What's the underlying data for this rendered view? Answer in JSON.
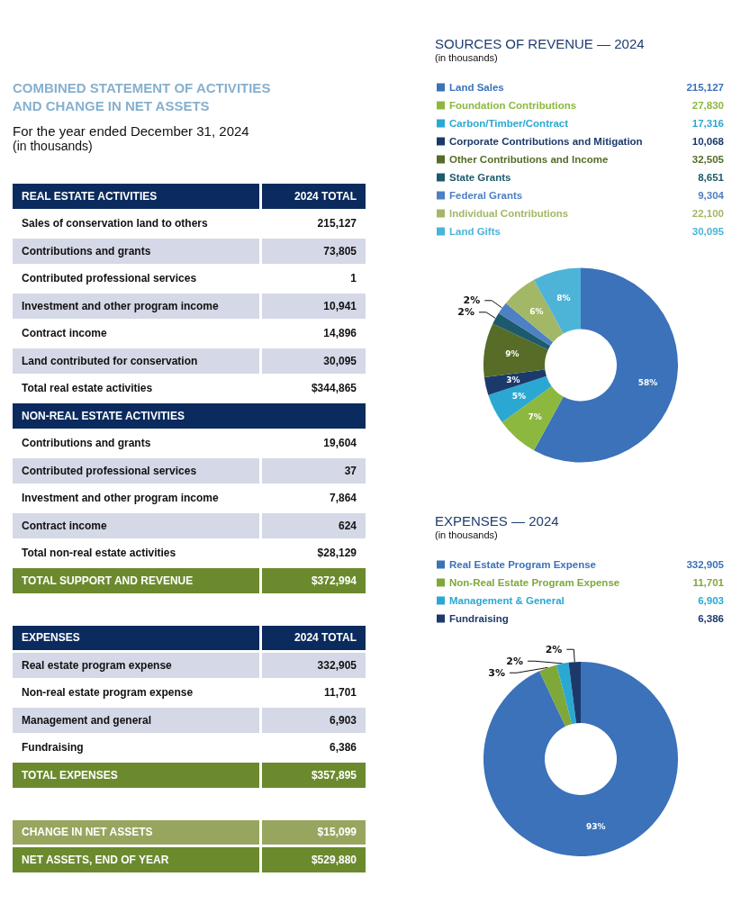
{
  "chart_data": [
    {
      "type": "other",
      "title": "COMBINED STATEMENT OF ACTIVITIES AND CHANGE IN NET ASSETS",
      "subtitle": "For the year ended December 31, 2024",
      "annotations": [
        "(in thousands)"
      ],
      "categories": [
        "REAL ESTATE ACTIVITIES",
        "Sales of conservation land to others",
        "Contributions and grants",
        "Contributed professional services",
        "Investment and other program income",
        "Contract income",
        "Land contributed for conservation",
        "Total real estate activities",
        "NON-REAL ESTATE ACTIVITIES",
        "Contributions and grants",
        "Contributed professional services",
        "Investment and other program income",
        "Contract income",
        "Total non-real estate activities",
        "TOTAL SUPPORT AND REVENUE",
        null,
        "EXPENSES",
        "Real estate program expense",
        "Non-real estate program expense",
        "Management and general",
        "Fundraising",
        "TOTAL EXPENSES",
        null,
        "CHANGE IN NET ASSETS",
        "NET ASSETS, END OF YEAR"
      ],
      "value_labels": [
        "2024 TOTAL",
        "215,127",
        "73,805",
        "1",
        "10,941",
        "14,896",
        "30,095",
        "$344,865",
        null,
        "19,604",
        "37",
        "7,864",
        "624",
        "$28,129",
        "$372,994",
        null,
        "2024 TOTAL",
        "332,905",
        "11,701",
        "6,903",
        "6,386",
        "$357,895",
        null,
        "$15,099",
        "$529,880"
      ],
      "colors": [
        "#0b2b5e",
        "#ffffff",
        "#d5d8e6",
        "#ffffff",
        "#d5d8e6",
        "#ffffff",
        "#d5d8e6",
        "#ffffff",
        "#0b2b5e",
        "#ffffff",
        "#d5d8e6",
        "#ffffff",
        "#d5d8e6",
        "#ffffff",
        "#6b8a2e",
        null,
        "#0b2b5e",
        "#d5d8e6",
        "#ffffff",
        "#d5d8e6",
        "#ffffff",
        "#6b8a2e",
        null,
        "#97a65f",
        "#6b8a2e"
      ]
    },
    {
      "type": "donut",
      "title": "SOURCES OF REVENUE — 2024",
      "subtitle": "(in thousands)",
      "categories": [
        "Land Sales",
        "Foundation Contributions",
        "Carbon/Timber/Contract",
        "Corporate Contributions and Mitigation",
        "Other Contributions and Income",
        "State Grants",
        "Federal Grants",
        "Individual Contributions",
        "Land Gifts"
      ],
      "values": [
        58,
        7,
        5,
        3,
        9,
        2,
        2,
        6,
        8
      ],
      "value_labels": [
        "58%",
        "7%",
        "5%",
        "3%",
        "9%",
        "2%",
        "2%",
        "6%",
        "8%"
      ],
      "annotations": [
        "215,127",
        "27,830",
        "17,316",
        "10,068",
        "32,505",
        "8,651",
        "9,304",
        "22,100",
        "30,095"
      ],
      "colors": [
        "#3b72b9",
        "#8cb83f",
        "#2ba8d2",
        "#1b3a6b",
        "#566c27",
        "#1d5a6c",
        "#4d80c4",
        "#a2b866",
        "#4db4d8"
      ],
      "legend": "top"
    },
    {
      "type": "donut",
      "title": "EXPENSES — 2024",
      "subtitle": "(in thousands)",
      "categories": [
        "Real Estate Program Expense",
        "Non-Real Estate Program Expense",
        "Management & General",
        "Fundraising"
      ],
      "values": [
        93,
        3,
        2,
        2
      ],
      "value_labels": [
        "93%",
        "3%",
        "2%",
        "2%"
      ],
      "annotations": [
        "332,905",
        "11,701",
        "6,903",
        "6,386"
      ],
      "colors": [
        "#3b72b9",
        "#7ea83a",
        "#2ba8d2",
        "#1b3a6b"
      ],
      "legend": "top"
    }
  ]
}
